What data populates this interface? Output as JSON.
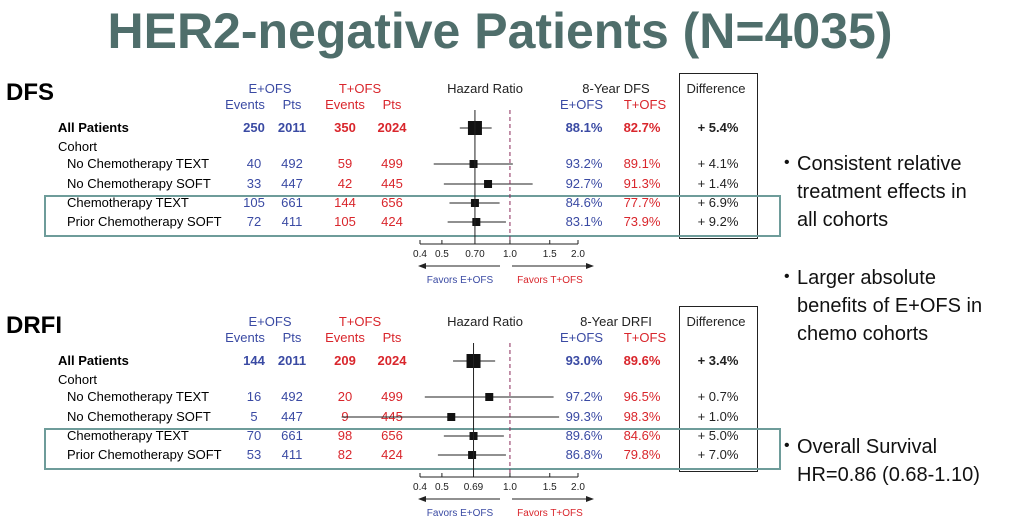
{
  "title": "HER2-negative Patients (N=4035)",
  "headers": {
    "eofs": "E+OFS",
    "tofs": "T+OFS",
    "events": "Events",
    "pts": "Pts",
    "hazard_ratio": "Hazard Ratio",
    "difference": "Difference"
  },
  "bullets": [
    [
      "Consistent relative",
      "treatment effects in",
      "all cohorts"
    ],
    [
      "Larger absolute",
      "benefits of E+OFS in",
      "chemo cohorts"
    ],
    [
      "Overall Survival",
      "HR=0.86 (0.68-1.10)"
    ]
  ],
  "colors": {
    "eofs": "#3a4aa3",
    "tofs": "#d9262c",
    "title": "#4f6e6b",
    "highlight": "#6e9c9a"
  },
  "chart_data": [
    {
      "type": "forest",
      "section": "DFS",
      "survival_header": "8-Year DFS",
      "reference_hr": 0.7,
      "axis_ticks": [
        "0.4",
        "0.5",
        "0.70",
        "1.0",
        "1.5",
        "2.0"
      ],
      "axis_tick_values": [
        0.4,
        0.5,
        0.7,
        1.0,
        1.5,
        2.0
      ],
      "favors_left": "Favors E+OFS",
      "favors_right": "Favors T+OFS",
      "cohort_label": "Cohort",
      "rows": [
        {
          "label": "All Patients",
          "bold": true,
          "e_events": "250",
          "e_pts": "2011",
          "t_events": "350",
          "t_pts": "2024",
          "e_dfs": "88.1%",
          "t_dfs": "82.7%",
          "diff": "+ 5.4%",
          "hr": 0.7,
          "lo": 0.6,
          "hi": 0.83
        },
        {
          "label": "No Chemotherapy TEXT",
          "bold": false,
          "e_events": "40",
          "e_pts": "492",
          "t_events": "59",
          "t_pts": "499",
          "e_dfs": "93.2%",
          "t_dfs": "89.1%",
          "diff": "+ 4.1%",
          "hr": 0.69,
          "lo": 0.46,
          "hi": 1.03
        },
        {
          "label": "No Chemotherapy SOFT",
          "bold": false,
          "e_events": "33",
          "e_pts": "447",
          "t_events": "42",
          "t_pts": "445",
          "e_dfs": "92.7%",
          "t_dfs": "91.3%",
          "diff": "+ 1.4%",
          "hr": 0.8,
          "lo": 0.51,
          "hi": 1.26
        },
        {
          "label": "Chemotherapy TEXT",
          "bold": false,
          "e_events": "105",
          "e_pts": "661",
          "t_events": "144",
          "t_pts": "656",
          "e_dfs": "84.6%",
          "t_dfs": "77.7%",
          "diff": "+ 6.9%",
          "hr": 0.7,
          "lo": 0.54,
          "hi": 0.9
        },
        {
          "label": "Prior Chemotherapy SOFT",
          "bold": false,
          "e_events": "72",
          "e_pts": "411",
          "t_events": "105",
          "t_pts": "424",
          "e_dfs": "83.1%",
          "t_dfs": "73.9%",
          "diff": "+ 9.2%",
          "hr": 0.71,
          "lo": 0.53,
          "hi": 0.96
        }
      ]
    },
    {
      "type": "forest",
      "section": "DRFI",
      "survival_header": "8-Year DRFI",
      "reference_hr": 0.69,
      "axis_ticks": [
        "0.4",
        "0.5",
        "0.69",
        "1.0",
        "1.5",
        "2.0"
      ],
      "axis_tick_values": [
        0.4,
        0.5,
        0.69,
        1.0,
        1.5,
        2.0
      ],
      "favors_left": "Favors E+OFS",
      "favors_right": "Favors T+OFS",
      "cohort_label": "Cohort",
      "rows": [
        {
          "label": "All Patients",
          "bold": true,
          "e_events": "144",
          "e_pts": "2011",
          "t_events": "209",
          "t_pts": "2024",
          "e_dfs": "93.0%",
          "t_dfs": "89.6%",
          "diff": "+ 3.4%",
          "hr": 0.69,
          "lo": 0.56,
          "hi": 0.86
        },
        {
          "label": "No Chemotherapy TEXT",
          "bold": false,
          "e_events": "16",
          "e_pts": "492",
          "t_events": "20",
          "t_pts": "499",
          "e_dfs": "97.2%",
          "t_dfs": "96.5%",
          "diff": "+ 0.7%",
          "hr": 0.81,
          "lo": 0.42,
          "hi": 1.56
        },
        {
          "label": "No Chemotherapy SOFT",
          "bold": false,
          "e_events": "5",
          "e_pts": "447",
          "t_events": "9",
          "t_pts": "445",
          "e_dfs": "99.3%",
          "t_dfs": "98.3%",
          "diff": "+ 1.0%",
          "hr": 0.55,
          "lo": 0.18,
          "hi": 1.65
        },
        {
          "label": "Chemotherapy TEXT",
          "bold": false,
          "e_events": "70",
          "e_pts": "661",
          "t_events": "98",
          "t_pts": "656",
          "e_dfs": "89.6%",
          "t_dfs": "84.6%",
          "diff": "+ 5.0%",
          "hr": 0.69,
          "lo": 0.51,
          "hi": 0.94
        },
        {
          "label": "Prior Chemotherapy SOFT",
          "bold": false,
          "e_events": "53",
          "e_pts": "411",
          "t_events": "82",
          "t_pts": "424",
          "e_dfs": "86.8%",
          "t_dfs": "79.8%",
          "diff": "+ 7.0%",
          "hr": 0.68,
          "lo": 0.48,
          "hi": 0.96
        }
      ]
    }
  ]
}
